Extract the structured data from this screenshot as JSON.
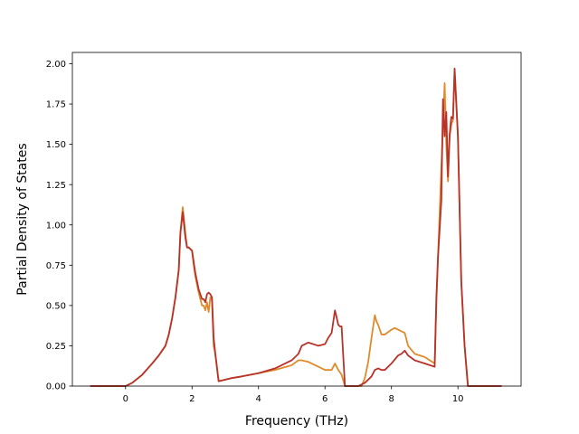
{
  "chart_data": {
    "type": "line",
    "title": "",
    "xlabel": "Frequency (THz)",
    "ylabel": "Partial Density of States",
    "xlim": [
      -1.6,
      11.9
    ],
    "ylim": [
      0,
      2.07
    ],
    "grid": false,
    "x_ticks": [
      0,
      2,
      4,
      6,
      8,
      10
    ],
    "x_tick_labels": [
      "0",
      "2",
      "4",
      "6",
      "8",
      "10"
    ],
    "y_ticks": [
      0,
      0.25,
      0.5,
      0.75,
      1.0,
      1.25,
      1.5,
      1.75,
      2.0
    ],
    "y_tick_labels": [
      "0.00",
      "0.25",
      "0.50",
      "0.75",
      "1.00",
      "1.25",
      "1.50",
      "1.75",
      "2.00"
    ],
    "series": [
      {
        "color": "#e08a2c",
        "x": [
          -1.05,
          -0.5,
          0.0,
          0.2,
          0.5,
          0.8,
          1.0,
          1.2,
          1.3,
          1.4,
          1.5,
          1.6,
          1.65,
          1.72,
          1.8,
          1.85,
          1.9,
          2.0,
          2.05,
          2.1,
          2.2,
          2.3,
          2.35,
          2.4,
          2.45,
          2.5,
          2.55,
          2.6,
          2.65,
          2.7,
          2.8,
          3.0,
          3.2,
          3.5,
          4.0,
          4.5,
          5.0,
          5.2,
          5.3,
          5.5,
          5.8,
          6.0,
          6.2,
          6.3,
          6.4,
          6.5,
          6.6,
          7.0,
          7.1,
          7.2,
          7.3,
          7.4,
          7.5,
          7.55,
          7.6,
          7.7,
          7.8,
          8.0,
          8.1,
          8.2,
          8.3,
          8.4,
          8.5,
          8.7,
          9.0,
          9.3,
          9.35,
          9.4,
          9.5,
          9.6,
          9.65,
          9.7,
          9.75,
          9.8,
          9.85,
          9.9,
          10.0,
          10.1,
          10.2,
          10.3,
          11.3
        ],
        "y": [
          0.0,
          0.0,
          0.0,
          0.02,
          0.07,
          0.14,
          0.19,
          0.25,
          0.32,
          0.42,
          0.55,
          0.72,
          0.95,
          1.11,
          0.95,
          0.86,
          0.86,
          0.84,
          0.75,
          0.68,
          0.58,
          0.5,
          0.5,
          0.47,
          0.52,
          0.46,
          0.55,
          0.53,
          0.25,
          0.2,
          0.03,
          0.04,
          0.05,
          0.06,
          0.08,
          0.1,
          0.13,
          0.16,
          0.16,
          0.15,
          0.12,
          0.1,
          0.1,
          0.14,
          0.1,
          0.07,
          0.0,
          0.0,
          0.0,
          0.05,
          0.15,
          0.3,
          0.44,
          0.4,
          0.38,
          0.32,
          0.32,
          0.35,
          0.36,
          0.35,
          0.34,
          0.33,
          0.25,
          0.2,
          0.18,
          0.14,
          0.5,
          0.8,
          1.35,
          1.88,
          1.5,
          1.27,
          1.55,
          1.62,
          1.65,
          1.95,
          1.55,
          0.65,
          0.25,
          0.0,
          0.0
        ]
      },
      {
        "color": "#b8322a",
        "x": [
          -1.05,
          -0.5,
          0.0,
          0.2,
          0.5,
          0.8,
          1.0,
          1.2,
          1.3,
          1.4,
          1.5,
          1.6,
          1.65,
          1.72,
          1.8,
          1.85,
          1.9,
          2.0,
          2.05,
          2.1,
          2.2,
          2.3,
          2.35,
          2.4,
          2.45,
          2.5,
          2.55,
          2.6,
          2.65,
          2.7,
          2.8,
          3.0,
          3.2,
          3.5,
          4.0,
          4.5,
          5.0,
          5.2,
          5.3,
          5.5,
          5.8,
          6.0,
          6.1,
          6.2,
          6.3,
          6.4,
          6.45,
          6.5,
          6.6,
          7.0,
          7.2,
          7.4,
          7.5,
          7.6,
          7.7,
          7.8,
          8.0,
          8.2,
          8.3,
          8.4,
          8.5,
          8.7,
          9.0,
          9.3,
          9.35,
          9.4,
          9.5,
          9.55,
          9.6,
          9.65,
          9.7,
          9.75,
          9.8,
          9.85,
          9.9,
          10.0,
          10.1,
          10.2,
          10.3,
          11.3
        ],
        "y": [
          0.0,
          0.0,
          0.0,
          0.02,
          0.07,
          0.14,
          0.19,
          0.25,
          0.32,
          0.42,
          0.55,
          0.72,
          0.95,
          1.08,
          0.92,
          0.86,
          0.86,
          0.84,
          0.77,
          0.7,
          0.6,
          0.54,
          0.54,
          0.52,
          0.57,
          0.58,
          0.57,
          0.55,
          0.3,
          0.2,
          0.03,
          0.04,
          0.05,
          0.06,
          0.08,
          0.11,
          0.16,
          0.2,
          0.25,
          0.27,
          0.25,
          0.26,
          0.3,
          0.33,
          0.47,
          0.38,
          0.37,
          0.37,
          0.0,
          0.0,
          0.02,
          0.06,
          0.1,
          0.11,
          0.1,
          0.1,
          0.14,
          0.19,
          0.2,
          0.22,
          0.19,
          0.16,
          0.14,
          0.12,
          0.55,
          0.8,
          1.15,
          1.78,
          1.55,
          1.7,
          1.3,
          1.56,
          1.67,
          1.66,
          1.97,
          1.55,
          0.65,
          0.25,
          0.0,
          0.0
        ]
      }
    ]
  }
}
